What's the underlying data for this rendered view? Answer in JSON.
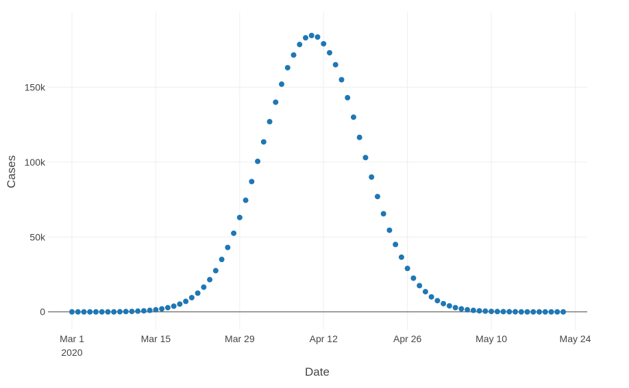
{
  "chart_data": {
    "type": "scatter",
    "title": "",
    "xlabel": "Date",
    "ylabel": "Cases",
    "x_start": "2020-03-01",
    "x_end": "2020-05-22",
    "xlim": [
      "2020-02-26",
      "2020-05-26"
    ],
    "ylim": [
      -12000,
      200000
    ],
    "grid": true,
    "marker_color": "#1f77b4",
    "x_ticks": [
      {
        "date": "2020-03-01",
        "label": "Mar 1",
        "sublabel": "2020"
      },
      {
        "date": "2020-03-15",
        "label": "Mar 15",
        "sublabel": ""
      },
      {
        "date": "2020-03-29",
        "label": "Mar 29",
        "sublabel": ""
      },
      {
        "date": "2020-04-12",
        "label": "Apr 12",
        "sublabel": ""
      },
      {
        "date": "2020-04-26",
        "label": "Apr 26",
        "sublabel": ""
      },
      {
        "date": "2020-05-10",
        "label": "May 10",
        "sublabel": ""
      },
      {
        "date": "2020-05-24",
        "label": "May 24",
        "sublabel": ""
      }
    ],
    "y_ticks": [
      {
        "value": 0,
        "label": "0"
      },
      {
        "value": 50000,
        "label": "50k"
      },
      {
        "value": 100000,
        "label": "100k"
      },
      {
        "value": 150000,
        "label": "150k"
      }
    ],
    "series": [
      {
        "values": [
          0,
          0,
          0,
          0,
          0,
          0,
          0,
          0,
          100,
          200,
          300,
          500,
          700,
          1000,
          1400,
          2000,
          2800,
          3800,
          5200,
          7000,
          9500,
          12500,
          16500,
          21500,
          27500,
          35000,
          43000,
          52500,
          63000,
          74500,
          87000,
          100500,
          113500,
          127000,
          140000,
          152000,
          163000,
          171500,
          178500,
          183000,
          184500,
          183500,
          179000,
          173000,
          165000,
          155000,
          143000,
          130000,
          116500,
          103000,
          90000,
          77000,
          65500,
          54500,
          45000,
          36500,
          29000,
          22500,
          17500,
          13500,
          10000,
          7500,
          5500,
          4000,
          2800,
          2000,
          1400,
          1000,
          700,
          500,
          300,
          200,
          150,
          100,
          50,
          0,
          0,
          0,
          0,
          0,
          0,
          0,
          0
        ]
      }
    ]
  }
}
